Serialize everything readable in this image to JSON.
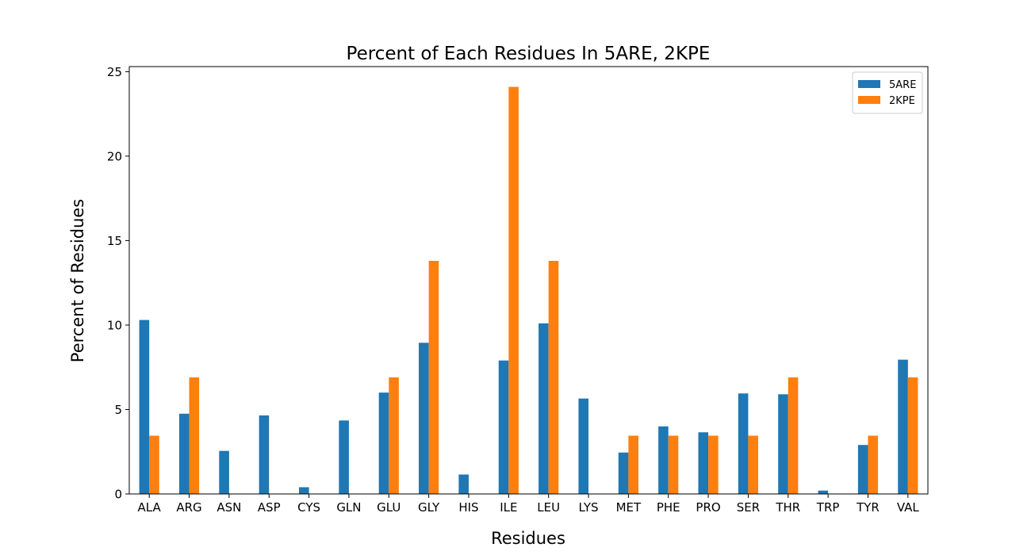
{
  "chart_data": {
    "type": "bar",
    "title": "Percent of Each Residues In 5ARE, 2KPE",
    "xlabel": "Residues",
    "ylabel": "Percent of Residues",
    "ylim": [
      0,
      25.3
    ],
    "yticks": [
      0,
      5,
      10,
      15,
      20,
      25
    ],
    "grid": false,
    "legend_position": "top-right",
    "categories": [
      "ALA",
      "ARG",
      "ASN",
      "ASP",
      "CYS",
      "GLN",
      "GLU",
      "GLY",
      "HIS",
      "ILE",
      "LEU",
      "LYS",
      "MET",
      "PHE",
      "PRO",
      "SER",
      "THR",
      "TRP",
      "TYR",
      "VAL"
    ],
    "series": [
      {
        "name": "5ARE",
        "color": "#1f77b4",
        "values": [
          10.3,
          4.75,
          2.55,
          4.65,
          0.4,
          4.35,
          6.0,
          8.95,
          1.15,
          7.9,
          10.1,
          5.65,
          2.45,
          4.0,
          3.65,
          5.95,
          5.9,
          0.2,
          2.9,
          7.95
        ]
      },
      {
        "name": "2KPE",
        "color": "#ff7f0e",
        "values": [
          3.45,
          6.9,
          0,
          0,
          0,
          0,
          6.9,
          13.8,
          0,
          24.1,
          13.8,
          0,
          3.45,
          3.45,
          3.45,
          3.45,
          6.9,
          0,
          3.45,
          6.9
        ]
      }
    ]
  }
}
